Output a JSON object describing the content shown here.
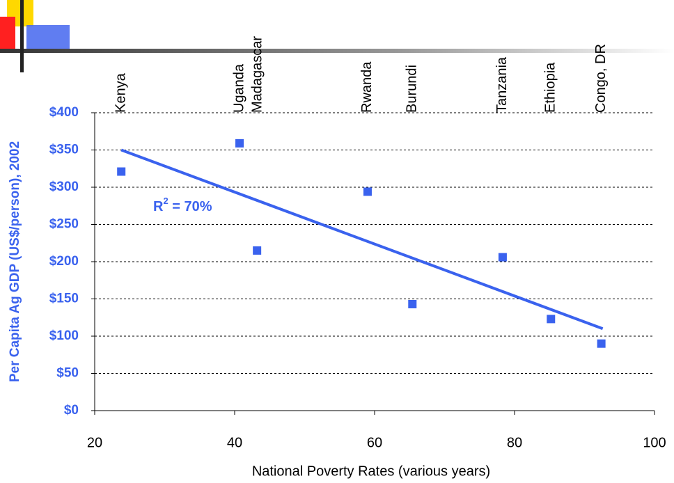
{
  "chart_data": {
    "type": "scatter",
    "x_label": "National Poverty Rates (various years)",
    "y_label": "Per Capita Ag GDP (US$/person), 2002",
    "categories": [
      "Kenya",
      "Uganda",
      "Madagascar",
      "Rwanda",
      "Burundi",
      "Tanzania",
      "Ethiopia",
      "Congo, DR"
    ],
    "x": [
      23.8,
      40.7,
      43.2,
      59,
      65.4,
      78.3,
      85.2,
      92.4
    ],
    "values": [
      321,
      359,
      215,
      294,
      143,
      206,
      123,
      90
    ],
    "color": "#3a62ee",
    "trendline": {
      "x": [
        23.8,
        92.6
      ],
      "values": [
        350,
        110
      ],
      "color": "#3a62ee"
    },
    "annotation": {
      "base": "R",
      "sup": "2",
      "rest": " = 70%"
    },
    "xlim": [
      20,
      100
    ],
    "xticks": [
      20,
      40,
      60,
      80,
      100
    ],
    "ylim": [
      0,
      400
    ],
    "yticks": [
      {
        "value": 0,
        "label": "$0"
      },
      {
        "value": 50,
        "label": "$50"
      },
      {
        "value": 100,
        "label": "$100"
      },
      {
        "value": 150,
        "label": "$150"
      },
      {
        "value": 200,
        "label": "$200"
      },
      {
        "value": 250,
        "label": "$250"
      },
      {
        "value": 300,
        "label": "$300"
      },
      {
        "value": 350,
        "label": "$350"
      },
      {
        "value": 400,
        "label": "$400"
      }
    ],
    "grid": true
  }
}
